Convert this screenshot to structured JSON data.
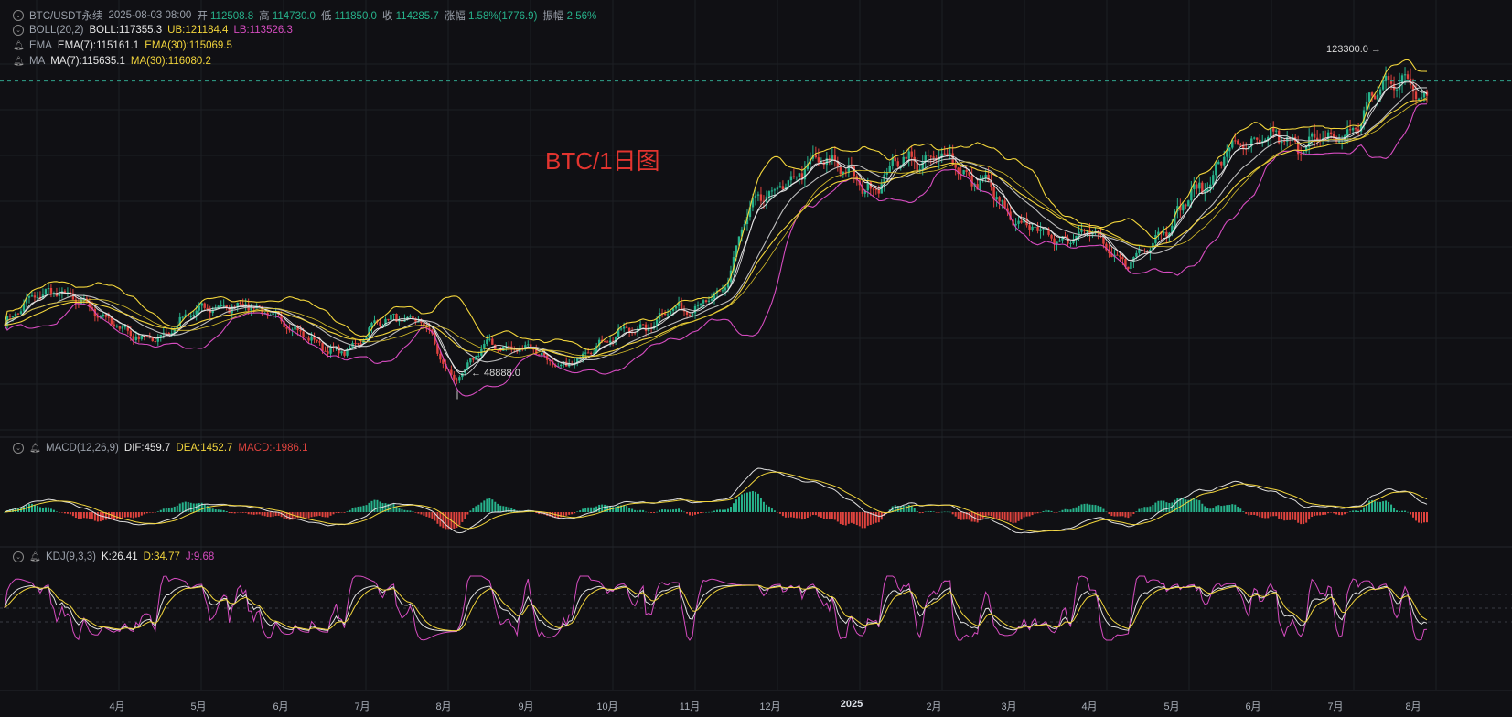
{
  "header": {
    "symbol": "BTC/USDT永续",
    "datetime": "2025-08-03 08:00",
    "open_label": "开",
    "open": "112508.8",
    "high_label": "高",
    "high": "114730.0",
    "low_label": "低",
    "low": "111850.0",
    "close_label": "收",
    "close": "114285.7",
    "change_label": "涨幅",
    "change": "1.58%(1776.9)",
    "amp_label": "振幅",
    "amp": "2.56%"
  },
  "indicators": {
    "boll": {
      "name": "BOLL(20,2)",
      "mid": "BOLL:117355.3",
      "ub": "UB:121184.4",
      "lb": "LB:113526.3"
    },
    "ema": {
      "name": "EMA",
      "ema7": "EMA(7):115161.1",
      "ema30": "EMA(30):115069.5"
    },
    "ma": {
      "name": "MA",
      "ma7": "MA(7):115635.1",
      "ma30": "MA(30):116080.2"
    },
    "macd": {
      "name": "MACD(12,26,9)",
      "dif": "DIF:459.7",
      "dea": "DEA:1452.7",
      "macd": "MACD:-1986.1"
    },
    "kdj": {
      "name": "KDJ(9,3,3)",
      "k": "K:26.41",
      "d": "D:34.77",
      "j": "J:9.68"
    }
  },
  "watermark": "BTC/1日图",
  "annotations": {
    "high": "123300.0 →",
    "low": "← 48888.0"
  },
  "colors": {
    "up": "#27b38c",
    "down": "#e0433e",
    "yellow": "#f2d53c",
    "magenta": "#d64cc0",
    "white": "#d8d8d8",
    "grid": "#1d1f24"
  },
  "chart_data": {
    "type": "candlestick",
    "period": "1D",
    "x_ticks": [
      "4月",
      "5月",
      "6月",
      "7月",
      "8月",
      "9月",
      "10月",
      "11月",
      "12月",
      "2025",
      "2月",
      "3月",
      "4月",
      "5月",
      "6月",
      "7月",
      "8月"
    ],
    "anchors": [
      {
        "x": "3月",
        "close": 64000
      },
      {
        "x": "3月中",
        "close": 71000
      },
      {
        "x": "4月",
        "close": 69000
      },
      {
        "x": "4月中",
        "close": 63000
      },
      {
        "x": "5月",
        "close": 60000
      },
      {
        "x": "5月中",
        "close": 66000
      },
      {
        "x": "6月",
        "close": 68000
      },
      {
        "x": "6月中",
        "close": 66500
      },
      {
        "x": "7月",
        "close": 61000
      },
      {
        "x": "7月初",
        "close": 57000
      },
      {
        "x": "7月中",
        "close": 64000
      },
      {
        "x": "8月",
        "close": 65000
      },
      {
        "x": "8月初",
        "close": 52000
      },
      {
        "x": "8月中",
        "close": 59000
      },
      {
        "x": "9月",
        "close": 58000
      },
      {
        "x": "9月初",
        "close": 54000
      },
      {
        "x": "9月中",
        "close": 60000
      },
      {
        "x": "10月",
        "close": 63000
      },
      {
        "x": "10月中",
        "close": 67000
      },
      {
        "x": "11月",
        "close": 69000
      },
      {
        "x": "11月中",
        "close": 90000
      },
      {
        "x": "12月",
        "close": 96000
      },
      {
        "x": "12月中",
        "close": 101000
      },
      {
        "x": "2025",
        "close": 94000
      },
      {
        "x": "1月中",
        "close": 100000
      },
      {
        "x": "2月",
        "close": 101000
      },
      {
        "x": "2月中",
        "close": 96000
      },
      {
        "x": "3月",
        "close": 87000
      },
      {
        "x": "3月中",
        "close": 83000
      },
      {
        "x": "4月",
        "close": 84000
      },
      {
        "x": "4月初",
        "close": 77000
      },
      {
        "x": "4月中",
        "close": 85000
      },
      {
        "x": "5月",
        "close": 95000
      },
      {
        "x": "5月中",
        "close": 104000
      },
      {
        "x": "6月",
        "close": 105000
      },
      {
        "x": "6月中",
        "close": 104000
      },
      {
        "x": "7月",
        "close": 107000
      },
      {
        "x": "7月中",
        "close": 119000
      },
      {
        "x": "8月",
        "close": 114285.7
      }
    ],
    "y_range": [
      40000,
      130000
    ],
    "hline": 118000,
    "marked_high": 123300.0,
    "marked_low": 48888.0,
    "overlays": [
      "BOLL(20,2)",
      "EMA(7)",
      "EMA(30)",
      "MA(7)",
      "MA(30)"
    ],
    "sub_panels": [
      "MACD(12,26,9)",
      "KDJ(9,3,3)"
    ],
    "grid": true
  }
}
